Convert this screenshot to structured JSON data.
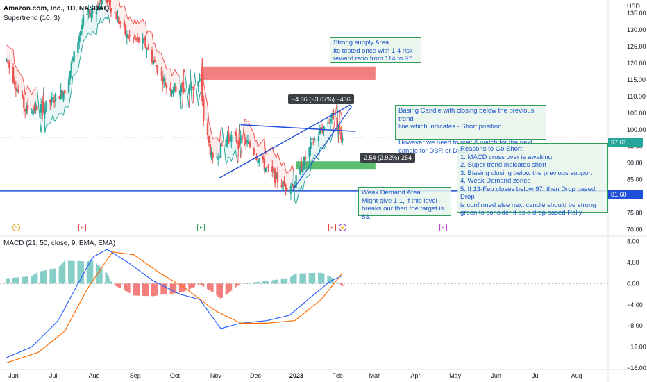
{
  "header": {
    "symbol_title": "Amazon.com, Inc., 1D, NASDAQ",
    "indicator": "Supertrend (10, 3)",
    "macd_label": "MACD (21, 50, close, 9, EMA, EMA)"
  },
  "price_axis": {
    "currency": "USD",
    "ticks": [
      "135.00",
      "130.00",
      "125.00",
      "120.00",
      "115.00",
      "110.00",
      "105.00",
      "100.00",
      "95.00",
      "90.00",
      "85.00",
      "80.00",
      "75.00",
      "70.00"
    ],
    "last_price_badge": "97.61",
    "support_badge": "81.60"
  },
  "macd_axis": {
    "ticks": [
      "8.00",
      "4.00",
      "0.00",
      "−4.00",
      "−8.00",
      "−12.00",
      "−16.00"
    ]
  },
  "time_axis": {
    "labels": [
      "Jun",
      "Jul",
      "Aug",
      "Sep",
      "Oct",
      "Nov",
      "Dec",
      "2023",
      "Feb",
      "Mar",
      "Apr",
      "May",
      "Jun",
      "Jul",
      "Aug"
    ]
  },
  "annotations": {
    "supply": "Strong supply Area\nIts tested once with 1:4 risk\nreward ratio from 114 to 97",
    "basing": "Basing Candle with closing below the previous trend\nline which indicates - Short position.\n\nHowever we need to wait & watch for the next\ncandle for DBR or DBD.",
    "reasons": "Reasons to Go Short:\n1. MACD cross over is awaiting.\n2. Super trend indicates short\n3. Biasing closing below the previous support\n4. Weak Demand zones\n5. If 13-Feb closes below 97, then Drop based Drop\nis confirmed else next candle should be strong\ngreen to consider it as a drop based Rally.",
    "demand": "Weak Demand Area\nMight give 1:1, if this level\nbreaks our then the target is\n83.",
    "measure_down": "−4.36 (−3.67%) −436",
    "measure_up": "2.54 (2.92%) 254"
  },
  "events": [
    {
      "letter": "S",
      "color": "#e0a21b"
    },
    {
      "letter": "E",
      "color": "#e04545"
    },
    {
      "letter": "E",
      "color": "#2e9e58"
    },
    {
      "letter": "E",
      "color": "#e04545"
    },
    {
      "letter": "⚡",
      "color": "#a03cd6"
    },
    {
      "letter": "E",
      "color": "#c040d0"
    }
  ],
  "colors": {
    "up": "#26a69a",
    "down": "#ef5350",
    "macd": "#2962ff",
    "signal": "#ff6d00",
    "support_line": "#1e4fd8",
    "supply_zone": "#f28080",
    "demand_zone": "#5cbf6f"
  },
  "chart_data": [
    {
      "type": "candlestick",
      "title": "Amazon.com, Inc., 1D, NASDAQ",
      "x_range": [
        "2022-05-27",
        "2023-08-30"
      ],
      "ylim": [
        68,
        139
      ],
      "close_path": [
        {
          "d": "2022-06-01",
          "c": 121
        },
        {
          "d": "2022-06-15",
          "c": 106
        },
        {
          "d": "2022-06-30",
          "c": 107
        },
        {
          "d": "2022-07-15",
          "c": 112
        },
        {
          "d": "2022-07-29",
          "c": 133
        },
        {
          "d": "2022-08-15",
          "c": 140
        },
        {
          "d": "2022-08-31",
          "c": 128
        },
        {
          "d": "2022-09-13",
          "c": 126
        },
        {
          "d": "2022-09-30",
          "c": 113
        },
        {
          "d": "2022-10-14",
          "c": 112
        },
        {
          "d": "2022-10-26",
          "c": 115
        },
        {
          "d": "2022-10-28",
          "c": 103
        },
        {
          "d": "2022-11-04",
          "c": 90
        },
        {
          "d": "2022-11-15",
          "c": 98
        },
        {
          "d": "2022-11-30",
          "c": 96
        },
        {
          "d": "2022-12-15",
          "c": 88
        },
        {
          "d": "2022-12-28",
          "c": 83
        },
        {
          "d": "2023-01-05",
          "c": 84
        },
        {
          "d": "2023-01-18",
          "c": 96
        },
        {
          "d": "2023-01-31",
          "c": 103
        },
        {
          "d": "2023-02-03",
          "c": 104
        },
        {
          "d": "2023-02-10",
          "c": 97.61
        }
      ],
      "supply_zone": {
        "from": "2022-10-26",
        "to": "2023-03-07",
        "low": 115,
        "high": 119
      },
      "demand_zone": {
        "from": "2023-01-06",
        "to": "2023-03-07",
        "low": 88,
        "high": 90.5
      },
      "support_level": 81.6,
      "last_price": 97.61
    },
    {
      "type": "line",
      "title": "MACD (21, 50, close, 9, EMA, EMA)",
      "ylim": [
        -16,
        9
      ],
      "series": [
        {
          "name": "MACD",
          "points": [
            {
              "d": "2022-06-01",
              "v": -14
            },
            {
              "d": "2022-06-20",
              "v": -12
            },
            {
              "d": "2022-07-10",
              "v": -7
            },
            {
              "d": "2022-07-25",
              "v": 0
            },
            {
              "d": "2022-08-05",
              "v": 5
            },
            {
              "d": "2022-08-16",
              "v": 6.5
            },
            {
              "d": "2022-09-01",
              "v": 4
            },
            {
              "d": "2022-09-20",
              "v": 0.5
            },
            {
              "d": "2022-10-10",
              "v": -2
            },
            {
              "d": "2022-10-25",
              "v": -3
            },
            {
              "d": "2022-11-10",
              "v": -8.5
            },
            {
              "d": "2022-11-25",
              "v": -7.5
            },
            {
              "d": "2022-12-15",
              "v": -7
            },
            {
              "d": "2023-01-01",
              "v": -6
            },
            {
              "d": "2023-01-15",
              "v": -3
            },
            {
              "d": "2023-02-01",
              "v": 0.5
            },
            {
              "d": "2023-02-10",
              "v": 1.5
            }
          ]
        },
        {
          "name": "Signal",
          "points": [
            {
              "d": "2022-06-01",
              "v": -15
            },
            {
              "d": "2022-06-25",
              "v": -13
            },
            {
              "d": "2022-07-15",
              "v": -9
            },
            {
              "d": "2022-08-01",
              "v": -1
            },
            {
              "d": "2022-08-20",
              "v": 6
            },
            {
              "d": "2022-09-05",
              "v": 5.5
            },
            {
              "d": "2022-09-25",
              "v": 2
            },
            {
              "d": "2022-10-15",
              "v": -1
            },
            {
              "d": "2022-11-05",
              "v": -5
            },
            {
              "d": "2022-11-25",
              "v": -7.5
            },
            {
              "d": "2022-12-15",
              "v": -7.5
            },
            {
              "d": "2023-01-05",
              "v": -7
            },
            {
              "d": "2023-01-25",
              "v": -3
            },
            {
              "d": "2023-02-10",
              "v": 2
            }
          ]
        }
      ]
    }
  ]
}
